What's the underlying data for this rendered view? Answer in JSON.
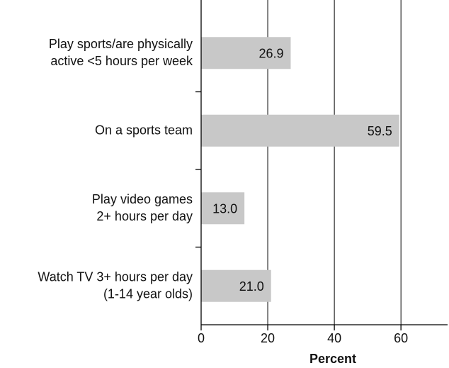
{
  "chart_data": {
    "type": "barh",
    "categories": [
      "Play sports/are physically\nactive <5 hours per week",
      "On a sports team",
      "Play video games\n2+ hours per day",
      "Watch TV  3+ hours per day\n(1-14 year olds)"
    ],
    "values": [
      26.9,
      59.5,
      13.0,
      21.0
    ],
    "value_labels": [
      "26.9",
      "59.5",
      "13.0",
      "21.0"
    ],
    "color": "#c8c8c8",
    "x_label": "Percent",
    "xlim": [
      0,
      74
    ],
    "xticks": [
      0,
      20,
      40,
      60
    ],
    "grid": true
  }
}
